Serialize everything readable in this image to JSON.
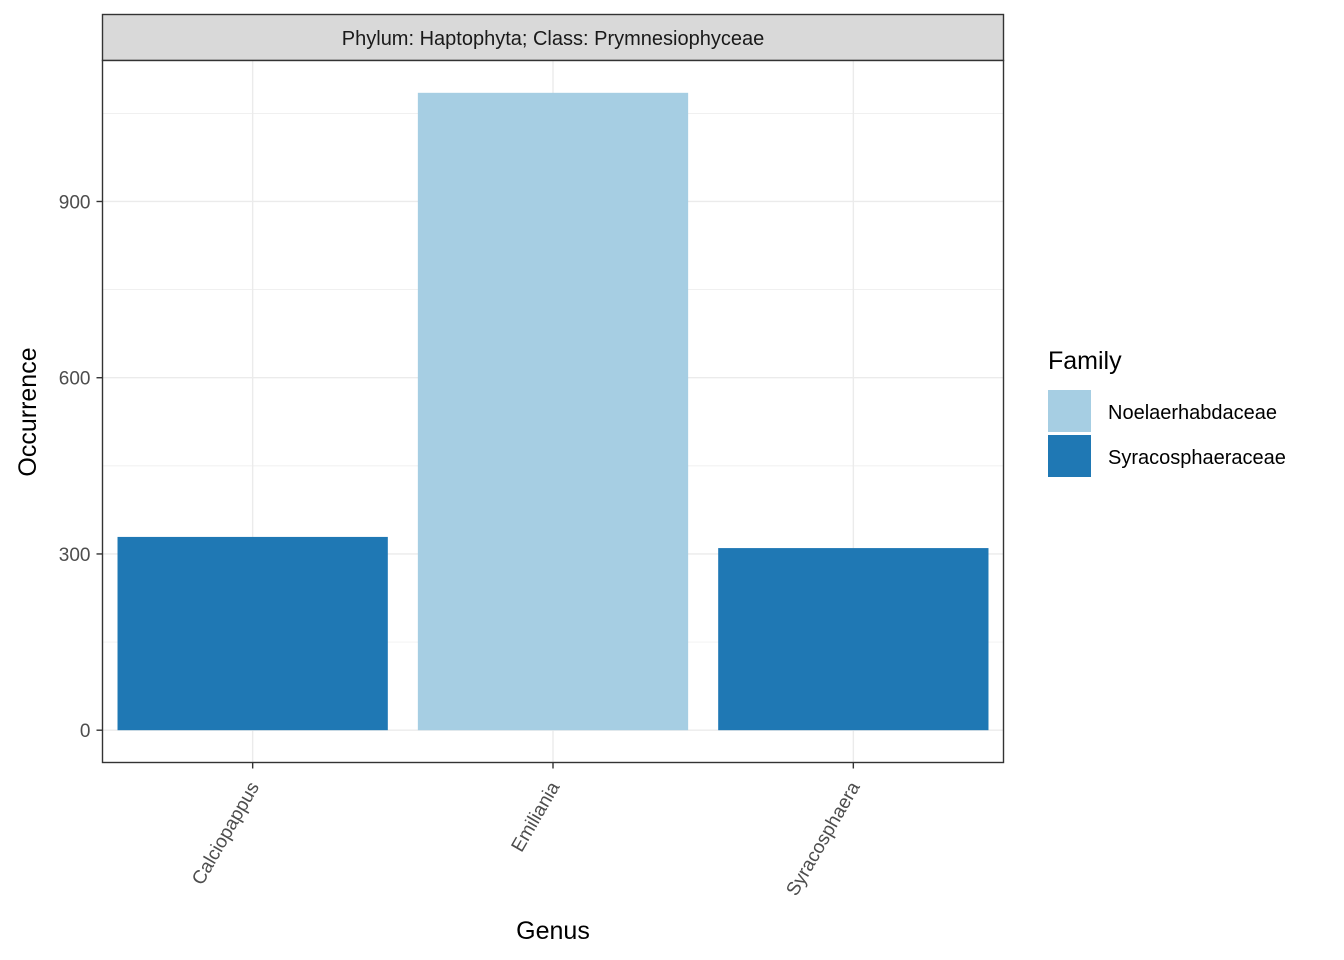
{
  "chart_data": {
    "type": "bar",
    "facet_label": "Phylum: Haptophyta; Class: Prymnesiophyceae",
    "categories": [
      "Calciopappus",
      "Emiliania",
      "Syracosphaera"
    ],
    "values": [
      329,
      1085,
      310
    ],
    "bar_family": [
      "Syracosphaeraceae",
      "Noelaerhabdaceae",
      "Syracosphaeraceae"
    ],
    "xlabel": "Genus",
    "ylabel": "Occurrence",
    "ylim": [
      -55,
      1140
    ],
    "yticks": [
      0,
      300,
      600,
      900
    ],
    "grid": true,
    "legend": {
      "title": "Family",
      "placement": "right",
      "entries": [
        {
          "label": "Noelaerhabdaceae",
          "color": "#a6cee3"
        },
        {
          "label": "Syracosphaeraceae",
          "color": "#1f78b4"
        }
      ]
    }
  }
}
